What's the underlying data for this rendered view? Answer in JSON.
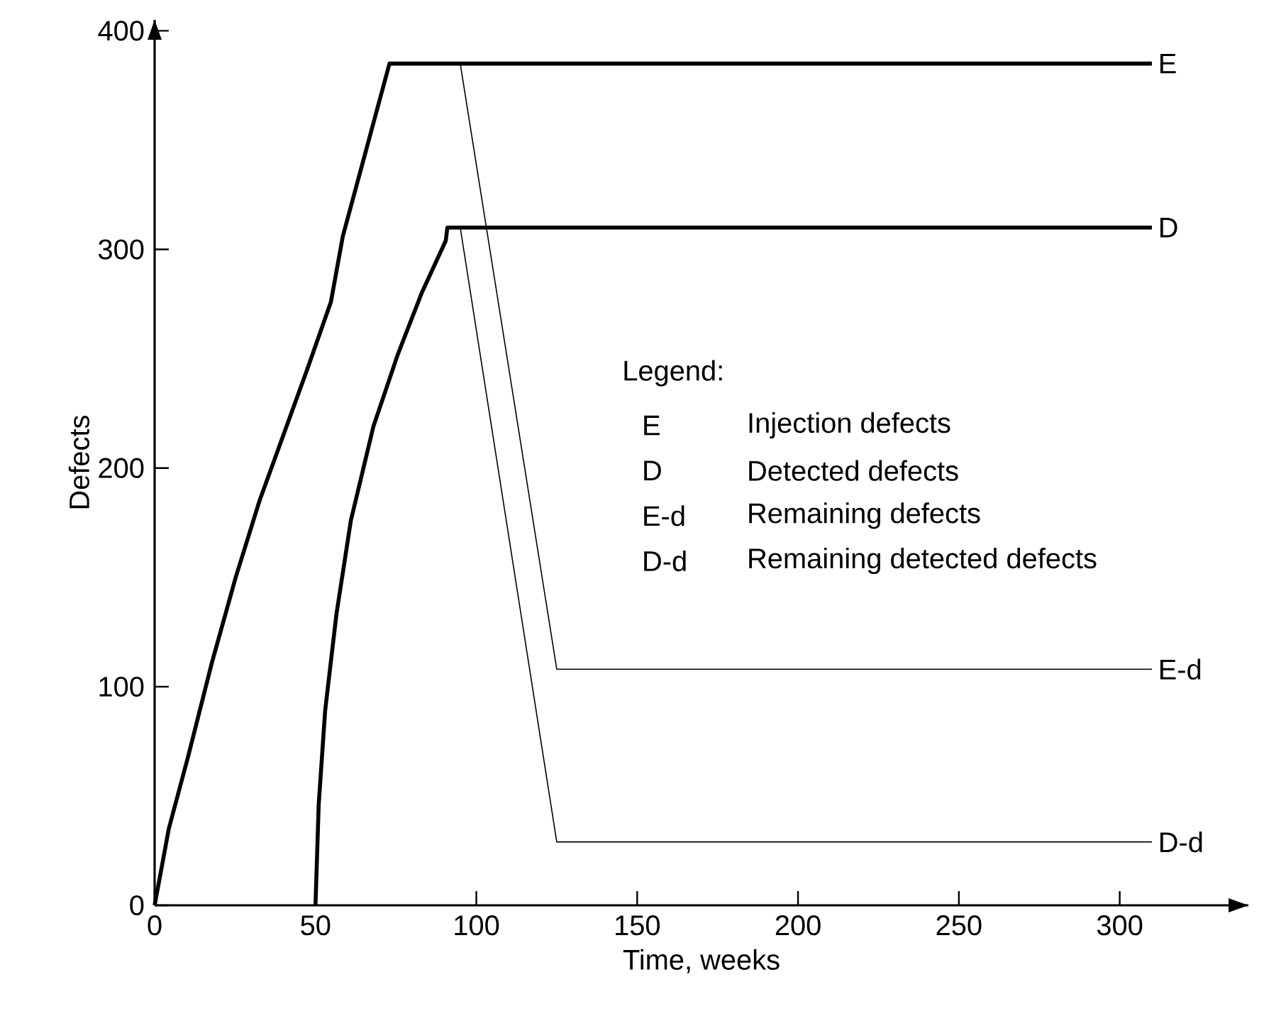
{
  "chart_data": {
    "type": "line",
    "xlabel": "Time, weeks",
    "ylabel": "Defects",
    "xlim": [
      0,
      340
    ],
    "ylim": [
      0,
      405
    ],
    "xticks": [
      0,
      50,
      100,
      150,
      200,
      250,
      300
    ],
    "yticks": [
      0,
      100,
      200,
      300,
      400
    ],
    "grid": false,
    "marker": "none",
    "line_style": "solid",
    "annotations": [
      "Legend:",
      "E",
      "Injection defects",
      "D",
      "Detected defects",
      "E-d",
      "Remaining defects",
      "D-d",
      "Remaining detected defects"
    ],
    "series": [
      {
        "name": "E",
        "color": "#000000",
        "x": [
          0,
          4.4,
          10.4,
          17.8,
          25.2,
          32.6,
          40,
          47.4,
          54.8,
          58.5,
          73,
          310
        ],
        "values": [
          0,
          35,
          68,
          111,
          150,
          185,
          215,
          245,
          276,
          306,
          385,
          385
        ]
      },
      {
        "name": "D",
        "color": "#000000",
        "x": [
          50,
          51,
          53,
          56.5,
          61,
          68,
          75.6,
          83,
          90.5,
          91,
          310
        ],
        "values": [
          0,
          46,
          89,
          133,
          176,
          219,
          252,
          280,
          304,
          310,
          310
        ]
      },
      {
        "name": "E-d",
        "color": "#000000",
        "x": [
          95,
          125,
          310
        ],
        "values": [
          385,
          108,
          108
        ]
      },
      {
        "name": "D-d",
        "color": "#000000",
        "x": [
          95,
          125,
          310
        ],
        "values": [
          310,
          29,
          29
        ]
      }
    ]
  }
}
